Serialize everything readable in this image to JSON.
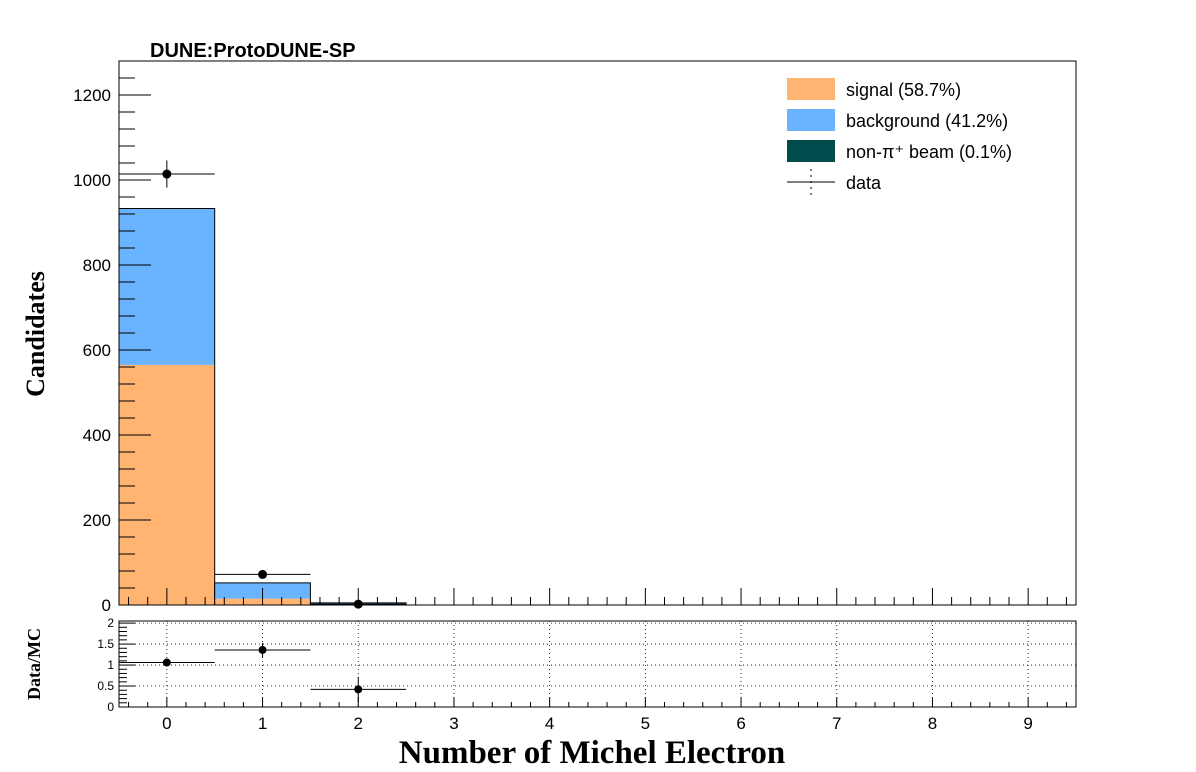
{
  "chart_data": [
    {
      "type": "bar",
      "stacked": true,
      "title": "DUNE:ProtoDUNE-SP",
      "xlabel": "Number of Michel Electron",
      "ylabel": "Candidates",
      "xlim": [
        -0.5,
        9.5
      ],
      "ylim": [
        0,
        1280
      ],
      "x_ticks": [
        "0",
        "1",
        "2",
        "3",
        "4",
        "5",
        "6",
        "7",
        "8",
        "9"
      ],
      "y_ticks": [
        "0",
        "200",
        "400",
        "600",
        "800",
        "1000",
        "1200"
      ],
      "grid": false,
      "legend_position": "top-right",
      "categories": [
        0,
        1,
        2,
        3,
        4,
        5,
        6,
        7,
        8,
        9
      ],
      "series": [
        {
          "name": "signal (58.7%)",
          "color": "#ffb571",
          "values": [
            565,
            15,
            1,
            0,
            0,
            0,
            0,
            0,
            0,
            0
          ]
        },
        {
          "name": "background (41.2%)",
          "color": "#6ab3ff",
          "values": [
            367,
            37,
            4,
            0,
            0,
            0,
            0,
            0,
            0,
            0
          ]
        },
        {
          "name": "non-π⁺ beam (0.1%)",
          "color": "#004c4c",
          "values": [
            1,
            0,
            0,
            0,
            0,
            0,
            0,
            0,
            0,
            0
          ]
        }
      ],
      "data_points": {
        "name": "data",
        "x": [
          0,
          1,
          2
        ],
        "y": [
          1014,
          72,
          2
        ],
        "y_err": [
          32,
          8.5,
          1.4
        ],
        "x_err": 0.5
      }
    },
    {
      "type": "scatter",
      "xlabel": "Number of Michel Electron",
      "ylabel": "Data/MC",
      "xlim": [
        -0.5,
        9.5
      ],
      "ylim": [
        0,
        2.05
      ],
      "x_ticks": [
        "0",
        "1",
        "2",
        "3",
        "4",
        "5",
        "6",
        "7",
        "8",
        "9"
      ],
      "y_ticks": [
        "0",
        "0.5",
        "1",
        "1.5",
        "2"
      ],
      "grid": true,
      "points": {
        "x": [
          0,
          1,
          2
        ],
        "y": [
          1.06,
          1.36,
          0.42
        ],
        "y_err": [
          0.04,
          0.17,
          0.3
        ],
        "x_err": 0.5
      }
    }
  ]
}
